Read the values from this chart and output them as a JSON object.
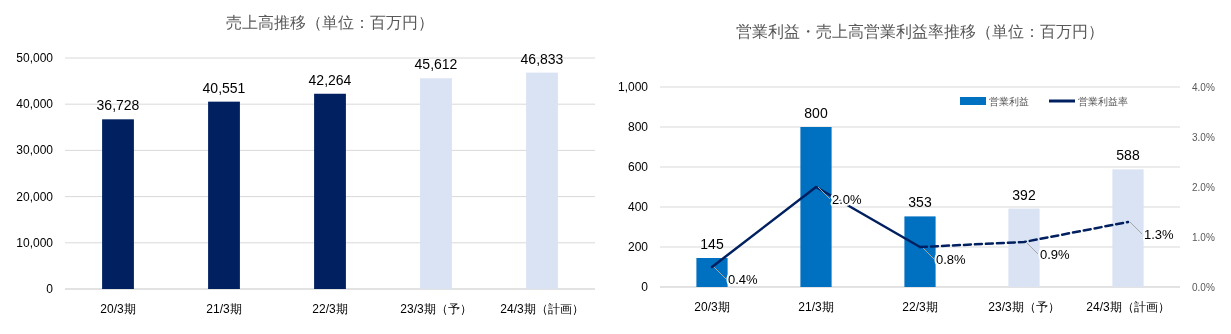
{
  "chart_data": [
    {
      "type": "bar",
      "title": "売上高推移（単位：百万円）",
      "categories": [
        "20/3期",
        "21/3期",
        "22/3期",
        "23/3期（予）",
        "24/3期（計画）"
      ],
      "values": [
        36728,
        40551,
        42264,
        45612,
        46833
      ],
      "colors": [
        "#002060",
        "#002060",
        "#002060",
        "#dae3f3",
        "#dae3f3"
      ],
      "value_labels": [
        "36,728",
        "40,551",
        "42,264",
        "45,612",
        "46,833"
      ],
      "ylim": [
        0,
        50000
      ],
      "yticks": [
        {
          "value": 0,
          "label": "0"
        },
        {
          "value": 10000,
          "label": "10,000"
        },
        {
          "value": 20000,
          "label": "20,000"
        },
        {
          "value": 30000,
          "label": "30,000"
        },
        {
          "value": 40000,
          "label": "40,000"
        },
        {
          "value": 50000,
          "label": "50,000"
        }
      ],
      "grid": "y",
      "legend": false
    },
    {
      "type": "bar",
      "title": "営業利益・売上高営業利益率推移（単位：百万円）",
      "categories": [
        "20/3期",
        "21/3期",
        "22/3期",
        "23/3期（予）",
        "24/3期（計画）"
      ],
      "series": [
        {
          "name": "営業利益",
          "type": "bar",
          "color": "#0070c0",
          "colors": [
            "#0070c0",
            "#0070c0",
            "#0070c0",
            "#dae3f3",
            "#dae3f3"
          ],
          "values": [
            145,
            800,
            353,
            392,
            588
          ],
          "value_labels": [
            "145",
            "800",
            "353",
            "392",
            "588"
          ]
        },
        {
          "name": "営業利益率",
          "type": "line",
          "axis": "y2",
          "color": "#002060",
          "line_style": "solid",
          "values": [
            0.4,
            2.0,
            0.8,
            null,
            null
          ],
          "value_labels": [
            "0.4%",
            "2.0%",
            "0.8%",
            null,
            null
          ]
        },
        {
          "type": "line",
          "axis": "y2",
          "color": "#002060",
          "line_style": "dashed",
          "values": [
            null,
            null,
            0.8,
            0.9,
            1.3
          ],
          "value_labels": [
            null,
            null,
            null,
            "0.9%",
            "1.3%"
          ]
        }
      ],
      "ylim": [
        0,
        1000
      ],
      "yticks": [
        {
          "value": 0,
          "label": "0"
        },
        {
          "value": 200,
          "label": "200"
        },
        {
          "value": 400,
          "label": "400"
        },
        {
          "value": 600,
          "label": "600"
        },
        {
          "value": 800,
          "label": "800"
        },
        {
          "value": 1000,
          "label": "1,000"
        }
      ],
      "y2lim": [
        0,
        4
      ],
      "y2ticks": [
        {
          "value": 0,
          "label": "0.0%"
        },
        {
          "value": 1,
          "label": "1.0%"
        },
        {
          "value": 2,
          "label": "2.0%"
        },
        {
          "value": 3,
          "label": "3.0%"
        },
        {
          "value": 4,
          "label": "4.0%"
        }
      ],
      "grid": "y",
      "legend": "top right"
    }
  ]
}
